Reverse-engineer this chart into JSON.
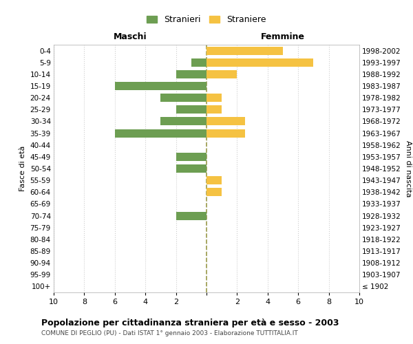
{
  "age_groups": [
    "100+",
    "95-99",
    "90-94",
    "85-89",
    "80-84",
    "75-79",
    "70-74",
    "65-69",
    "60-64",
    "55-59",
    "50-54",
    "45-49",
    "40-44",
    "35-39",
    "30-34",
    "25-29",
    "20-24",
    "15-19",
    "10-14",
    "5-9",
    "0-4"
  ],
  "birth_years": [
    "≤ 1902",
    "1903-1907",
    "1908-1912",
    "1913-1917",
    "1918-1922",
    "1923-1927",
    "1928-1932",
    "1933-1937",
    "1938-1942",
    "1943-1947",
    "1948-1952",
    "1953-1957",
    "1958-1962",
    "1963-1967",
    "1968-1972",
    "1973-1977",
    "1978-1982",
    "1983-1987",
    "1988-1992",
    "1993-1997",
    "1998-2002"
  ],
  "maschi": [
    0,
    0,
    0,
    0,
    0,
    0,
    2,
    0,
    0,
    0,
    2,
    2,
    0,
    6,
    3,
    2,
    3,
    6,
    2,
    1,
    0
  ],
  "femmine": [
    0,
    0,
    0,
    0,
    0,
    0,
    0,
    0,
    1,
    1,
    0,
    0,
    0,
    2.5,
    2.5,
    1,
    1,
    0,
    2,
    7,
    5
  ],
  "color_maschi": "#6d9e52",
  "color_femmine": "#f5c242",
  "background_color": "#ffffff",
  "grid_color": "#cccccc",
  "center_line_color": "#9b9b4a",
  "title": "Popolazione per cittadinanza straniera per età e sesso - 2003",
  "subtitle": "COMUNE DI PEGLIO (PU) - Dati ISTAT 1° gennaio 2003 - Elaborazione TUTTITALIA.IT",
  "xlabel_left": "Maschi",
  "xlabel_right": "Femmine",
  "ylabel_left": "Fasce di età",
  "ylabel_right": "Anni di nascita",
  "legend_maschi": "Stranieri",
  "legend_femmine": "Straniere",
  "xlim": 10
}
